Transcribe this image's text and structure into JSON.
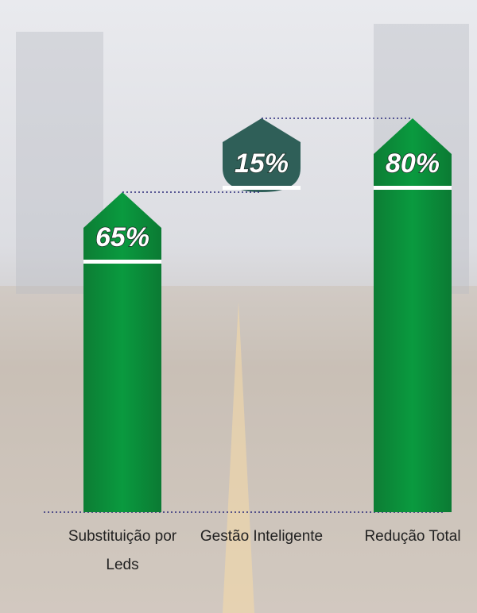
{
  "chart_data": {
    "type": "waterfall",
    "categories": [
      "Substituição por Leds",
      "Gestão Inteligente",
      "Redução Total"
    ],
    "values": [
      65,
      15,
      80
    ],
    "value_labels": [
      "65%",
      "15%",
      "80%"
    ],
    "roles": [
      "step",
      "step",
      "total"
    ],
    "colors": [
      "#0a8f3a",
      "#2f5f58",
      "#0a8f3a"
    ]
  }
}
